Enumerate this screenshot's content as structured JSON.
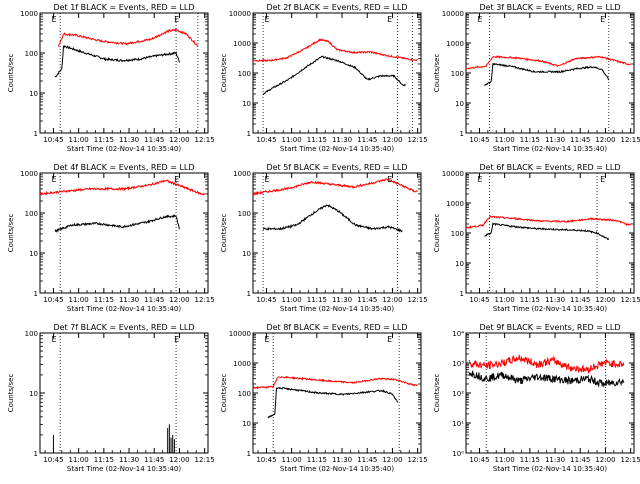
{
  "figure": {
    "x_axis_label": "Start Time (02-Nov-14 10:35:40)",
    "y_axis_label": "Counts/sec",
    "x_tick_labels": [
      "10:45",
      "11:00",
      "11:15",
      "11:30",
      "11:45",
      "12:00",
      "12:15"
    ],
    "colors": {
      "events": "#000000",
      "lld": "#ff0000"
    }
  },
  "chart_data": [
    {
      "type": "line",
      "title": "Det 1f BLACK = Events, RED = LLD",
      "xlabel": "Start Time (02-Nov-14 10:35:40)",
      "ylabel": "Counts/sec",
      "yscale": "log",
      "xlim": [
        "10:37",
        "12:17"
      ],
      "ylim": [
        1,
        1000
      ],
      "y_tick_labels": [
        "1",
        "10",
        "100",
        "1000"
      ],
      "markers": [
        "10:49",
        "11:58",
        "12:11"
      ],
      "marker_labels": [
        {
          "at": "10:45",
          "text": "E"
        },
        {
          "at": "11:58",
          "text": "E"
        }
      ],
      "series": [
        {
          "color": "#000000",
          "start": "10:46",
          "end": "12:00",
          "end_drop": 40,
          "start_level": 40,
          "values": [
            [
              0,
              25
            ],
            [
              4,
              40
            ],
            [
              5,
              150
            ],
            [
              18,
              100
            ],
            [
              30,
              70
            ],
            [
              40,
              65
            ],
            [
              50,
              70
            ],
            [
              60,
              85
            ],
            [
              68,
              95
            ],
            [
              72,
              100
            ],
            [
              74,
              60
            ]
          ]
        },
        {
          "color": "#ff0000",
          "start": "10:48",
          "end": "12:11",
          "values": [
            [
              0,
              150
            ],
            [
              3,
              300
            ],
            [
              10,
              280
            ],
            [
              25,
              200
            ],
            [
              40,
              170
            ],
            [
              55,
              220
            ],
            [
              65,
              350
            ],
            [
              70,
              380
            ],
            [
              76,
              300
            ],
            [
              83,
              150
            ]
          ]
        }
      ]
    },
    {
      "type": "line",
      "title": "Det 2f BLACK = Events, RED = LLD",
      "xlabel": "Start Time (02-Nov-14 10:35:40)",
      "ylabel": "Counts/sec",
      "yscale": "log",
      "xlim": [
        "10:37",
        "12:17"
      ],
      "ylim": [
        1,
        10000
      ],
      "y_tick_labels": [
        "1",
        "10",
        "100",
        "1000",
        "10000"
      ],
      "markers": [
        "10:43",
        "12:03",
        "12:12"
      ],
      "marker_labels": [
        {
          "at": "10:45",
          "text": "E"
        },
        {
          "at": "11:58",
          "text": "E"
        }
      ],
      "series": [
        {
          "color": "#000000",
          "start": "10:43",
          "end": "12:08",
          "values": [
            [
              0,
              20
            ],
            [
              5,
              30
            ],
            [
              15,
              60
            ],
            [
              25,
              150
            ],
            [
              35,
              350
            ],
            [
              45,
              250
            ],
            [
              55,
              150
            ],
            [
              62,
              60
            ],
            [
              70,
              80
            ],
            [
              78,
              80
            ],
            [
              83,
              40
            ]
          ]
        },
        {
          "color": "#ff0000",
          "start": "10:37",
          "end": "12:15",
          "values": [
            [
              0,
              260
            ],
            [
              10,
              260
            ],
            [
              20,
              320
            ],
            [
              30,
              600
            ],
            [
              40,
              1300
            ],
            [
              45,
              1100
            ],
            [
              50,
              600
            ],
            [
              60,
              480
            ],
            [
              70,
              500
            ],
            [
              80,
              380
            ],
            [
              96,
              270
            ]
          ]
        }
      ]
    },
    {
      "type": "line",
      "title": "Det 3f BLACK = Events, RED = LLD",
      "xlabel": "Start Time (02-Nov-14 10:35:40)",
      "ylabel": "Counts/sec",
      "yscale": "log",
      "xlim": [
        "10:37",
        "12:17"
      ],
      "ylim": [
        1,
        10000
      ],
      "y_tick_labels": [
        "1",
        "10",
        "100",
        "1000",
        "10000"
      ],
      "markers": [
        "10:51",
        "12:02"
      ],
      "marker_labels": [
        {
          "at": "10:45",
          "text": "E"
        },
        {
          "at": "11:58",
          "text": "E"
        }
      ],
      "series": [
        {
          "color": "#000000",
          "start": "10:48",
          "end": "12:02",
          "start_level": 40,
          "values": [
            [
              0,
              40
            ],
            [
              4,
              50
            ],
            [
              5,
              200
            ],
            [
              15,
              170
            ],
            [
              30,
              110
            ],
            [
              45,
              110
            ],
            [
              55,
              140
            ],
            [
              65,
              160
            ],
            [
              70,
              130
            ],
            [
              74,
              60
            ]
          ]
        },
        {
          "color": "#ff0000",
          "start": "10:37",
          "end": "12:15",
          "values": [
            [
              0,
              140
            ],
            [
              12,
              170
            ],
            [
              16,
              350
            ],
            [
              30,
              320
            ],
            [
              45,
              250
            ],
            [
              55,
              170
            ],
            [
              65,
              300
            ],
            [
              80,
              350
            ],
            [
              96,
              200
            ]
          ]
        }
      ]
    },
    {
      "type": "line",
      "title": "Det 4f BLACK = Events, RED = LLD",
      "xlabel": "Start Time (02-Nov-14 10:35:40)",
      "ylabel": "Counts/sec",
      "yscale": "log",
      "xlim": [
        "10:37",
        "12:17"
      ],
      "ylim": [
        1,
        1000
      ],
      "y_tick_labels": [
        "1",
        "10",
        "100",
        "1000"
      ],
      "markers": [
        "10:49",
        "11:58"
      ],
      "marker_labels": [
        {
          "at": "10:45",
          "text": "E"
        },
        {
          "at": "11:58",
          "text": "E"
        }
      ],
      "series": [
        {
          "color": "#000000",
          "start": "10:46",
          "end": "12:00",
          "values": [
            [
              0,
              35
            ],
            [
              10,
              50
            ],
            [
              25,
              55
            ],
            [
              40,
              45
            ],
            [
              55,
              60
            ],
            [
              65,
              80
            ],
            [
              72,
              85
            ],
            [
              74,
              40
            ]
          ]
        },
        {
          "color": "#ff0000",
          "start": "10:37",
          "end": "12:15",
          "values": [
            [
              0,
              300
            ],
            [
              15,
              350
            ],
            [
              30,
              400
            ],
            [
              50,
              400
            ],
            [
              65,
              500
            ],
            [
              75,
              650
            ],
            [
              85,
              450
            ],
            [
              96,
              300
            ]
          ]
        }
      ]
    },
    {
      "type": "line",
      "title": "Det 5f BLACK = Events, RED = LLD",
      "xlabel": "Start Time (02-Nov-14 10:35:40)",
      "ylabel": "Counts/sec",
      "yscale": "log",
      "xlim": [
        "10:37",
        "12:17"
      ],
      "ylim": [
        1,
        1000
      ],
      "y_tick_labels": [
        "1",
        "10",
        "100",
        "1000"
      ],
      "markers": [
        "10:43",
        "12:03"
      ],
      "marker_labels": [
        {
          "at": "10:45",
          "text": "E"
        },
        {
          "at": "11:58",
          "text": "E"
        }
      ],
      "series": [
        {
          "color": "#000000",
          "start": "10:43",
          "end": "12:06",
          "values": [
            [
              0,
              40
            ],
            [
              10,
              40
            ],
            [
              20,
              50
            ],
            [
              30,
              100
            ],
            [
              38,
              160
            ],
            [
              45,
              110
            ],
            [
              55,
              50
            ],
            [
              65,
              40
            ],
            [
              75,
              45
            ],
            [
              83,
              35
            ]
          ]
        },
        {
          "color": "#ff0000",
          "start": "10:37",
          "end": "12:15",
          "values": [
            [
              0,
              300
            ],
            [
              10,
              350
            ],
            [
              20,
              400
            ],
            [
              35,
              600
            ],
            [
              50,
              500
            ],
            [
              60,
              450
            ],
            [
              70,
              550
            ],
            [
              80,
              700
            ],
            [
              88,
              500
            ],
            [
              96,
              350
            ]
          ]
        }
      ]
    },
    {
      "type": "line",
      "title": "Det 6f BLACK = Events, RED = LLD",
      "xlabel": "Start Time (02-Nov-14 10:35:40)",
      "ylabel": "Counts/sec",
      "yscale": "log",
      "xlim": [
        "10:37",
        "12:17"
      ],
      "ylim": [
        1,
        10000
      ],
      "y_tick_labels": [
        "1",
        "10",
        "100",
        "1000",
        "10000"
      ],
      "markers": [
        "10:51",
        "11:55"
      ],
      "marker_labels": [
        {
          "at": "10:45",
          "text": "E"
        },
        {
          "at": "11:58",
          "text": "E"
        }
      ],
      "series": [
        {
          "color": "#000000",
          "start": "10:48",
          "end": "12:02",
          "values": [
            [
              0,
              80
            ],
            [
              4,
              100
            ],
            [
              5,
              200
            ],
            [
              15,
              170
            ],
            [
              30,
              140
            ],
            [
              45,
              130
            ],
            [
              60,
              120
            ],
            [
              67,
              100
            ],
            [
              74,
              60
            ]
          ]
        },
        {
          "color": "#ff0000",
          "start": "10:37",
          "end": "12:15",
          "values": [
            [
              0,
              150
            ],
            [
              10,
              180
            ],
            [
              14,
              350
            ],
            [
              30,
              300
            ],
            [
              45,
              250
            ],
            [
              60,
              240
            ],
            [
              75,
              300
            ],
            [
              90,
              260
            ],
            [
              96,
              190
            ]
          ]
        }
      ]
    },
    {
      "type": "line",
      "title": "Det 7f BLACK = Events, RED = LLD",
      "xlabel": "Start Time (02-Nov-14 10:35:40)",
      "ylabel": "Counts/sec",
      "yscale": "log",
      "xlim": [
        "10:37",
        "12:17"
      ],
      "ylim": [
        1,
        100
      ],
      "y_tick_labels": [
        "1",
        "10",
        "100"
      ],
      "markers": [
        "10:49",
        "11:58"
      ],
      "marker_labels": [
        {
          "at": "10:45",
          "text": "E"
        },
        {
          "at": "11:58",
          "text": "E"
        }
      ],
      "spikes": [
        {
          "at": "10:45",
          "height": 2.0
        },
        {
          "at": "11:53",
          "height": 2.6
        },
        {
          "at": "11:54",
          "height": 3.0
        },
        {
          "at": "11:55",
          "height": 1.8
        },
        {
          "at": "11:56",
          "height": 2.0
        },
        {
          "at": "11:57",
          "height": 1.7
        }
      ]
    },
    {
      "type": "line",
      "title": "Det 8f BLACK = Events, RED = LLD",
      "xlabel": "Start Time (02-Nov-14 10:35:40)",
      "ylabel": "Counts/sec",
      "yscale": "log",
      "xlim": [
        "10:37",
        "12:17"
      ],
      "ylim": [
        1,
        10000
      ],
      "y_tick_labels": [
        "1",
        "10",
        "100",
        "1000",
        "10000"
      ],
      "markers": [
        "10:49",
        "12:04"
      ],
      "marker_labels": [
        {
          "at": "10:45",
          "text": "E"
        },
        {
          "at": "11:58",
          "text": "E"
        }
      ],
      "series": [
        {
          "color": "#000000",
          "start": "10:46",
          "end": "12:03",
          "start_level": 15,
          "values": [
            [
              0,
              15
            ],
            [
              4,
              20
            ],
            [
              5,
              150
            ],
            [
              15,
              130
            ],
            [
              30,
              100
            ],
            [
              45,
              90
            ],
            [
              60,
              110
            ],
            [
              68,
              120
            ],
            [
              74,
              90
            ],
            [
              77,
              50
            ]
          ]
        },
        {
          "color": "#ff0000",
          "start": "10:37",
          "end": "12:15",
          "values": [
            [
              0,
              150
            ],
            [
              12,
              160
            ],
            [
              15,
              350
            ],
            [
              30,
              300
            ],
            [
              45,
              250
            ],
            [
              60,
              220
            ],
            [
              75,
              300
            ],
            [
              85,
              280
            ],
            [
              96,
              180
            ]
          ]
        }
      ]
    },
    {
      "type": "line",
      "title": "Det 9f BLACK = Events, RED = LLD",
      "xlabel": "Start Time (02-Nov-14 10:35:40)",
      "ylabel": "Counts/sec",
      "yscale": "log",
      "xlim": [
        "10:37",
        "12:17"
      ],
      "ylim": [
        1,
        10000
      ],
      "y_tick_labels": [
        "10⁰",
        "10¹",
        "10²",
        "10³",
        "10⁴"
      ],
      "markers": [
        "10:49",
        "12:00"
      ],
      "series": [
        {
          "color": "#000000",
          "start": "10:39",
          "end": "12:11",
          "values": [
            [
              0,
              500
            ],
            [
              10,
              300
            ],
            [
              20,
              400
            ],
            [
              30,
              250
            ],
            [
              40,
              350
            ],
            [
              50,
              300
            ],
            [
              60,
              250
            ],
            [
              70,
              300
            ],
            [
              80,
              200
            ],
            [
              92,
              250
            ]
          ]
        },
        {
          "color": "#ff0000",
          "start": "10:39",
          "end": "12:11",
          "values": [
            [
              0,
              1000
            ],
            [
              10,
              800
            ],
            [
              20,
              1000
            ],
            [
              30,
              1500
            ],
            [
              40,
              900
            ],
            [
              50,
              1200
            ],
            [
              60,
              700
            ],
            [
              70,
              600
            ],
            [
              80,
              1000
            ],
            [
              92,
              900
            ]
          ]
        }
      ]
    }
  ]
}
